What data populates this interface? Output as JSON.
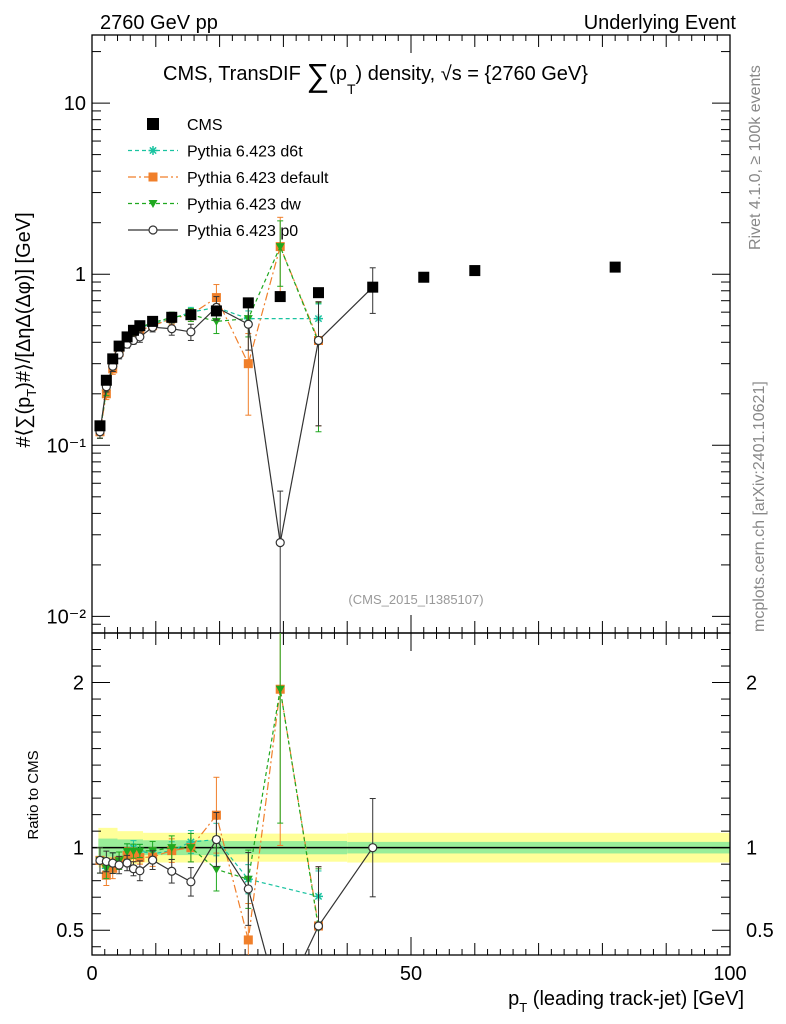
{
  "header": {
    "left": "2760 GeV pp",
    "right": "Underlying Event",
    "title_prefix": "CMS, TransDIF ",
    "title_sym": "∑",
    "title_p": "(p",
    "title_sub": "T",
    "title_suffix": ") density, √s = {2760 GeV}"
  },
  "side": {
    "rivet": "Rivet 4.1.0, ≥ 100k events",
    "mcplots": "mcplots.cern.ch [arXiv:2401.10621]"
  },
  "watermark": "(CMS_2015_I1385107)",
  "legend": [
    {
      "name": "CMS",
      "color": "#000000",
      "marker": "square"
    },
    {
      "name": "Pythia 6.423 d6t",
      "color": "#19c3a0",
      "marker": "star"
    },
    {
      "name": "Pythia 6.423 default",
      "color": "#f07f2a",
      "marker": "square"
    },
    {
      "name": "Pythia 6.423 dw",
      "color": "#1fa81f",
      "marker": "tri"
    },
    {
      "name": "Pythia 6.423 p0",
      "color": "#333333",
      "marker": "circle"
    }
  ],
  "chart_data": {
    "type": "scatter",
    "title": "CMS, TransDIF ∑(pT) density, √s = {2760 GeV}",
    "xlabel_main": "p",
    "xlabel_sub": "T",
    "xlabel_rest": " (leading track-jet) [GeV]",
    "ylabel": "#⟨∑(pT)#⟩/[ΔηΔ(Δφ)] [GeV]",
    "ratio_ylabel": "Ratio to CMS",
    "xlim": [
      0,
      100
    ],
    "ylim": [
      0.008,
      25
    ],
    "ratio_ylim": [
      0.35,
      2.3
    ],
    "x_ticks": [
      0,
      50,
      100
    ],
    "x_tick_labels": [
      "0",
      "50",
      "100"
    ],
    "y_ticks": [
      0.01,
      0.1,
      1,
      10
    ],
    "y_tick_labels": [
      "10⁻²",
      "10⁻¹",
      "1",
      "10"
    ],
    "ratio_ticks": [
      0.5,
      1,
      2
    ],
    "ratio_tick_labels": [
      "0.5",
      "1",
      "2"
    ],
    "cms": {
      "x": [
        1.25,
        2.25,
        3.25,
        4.25,
        5.5,
        6.5,
        7.5,
        9.5,
        12.5,
        15.5,
        19.5,
        24.5,
        29.5,
        35.5,
        44,
        52,
        60,
        82
      ],
      "y": [
        0.13,
        0.24,
        0.32,
        0.38,
        0.43,
        0.47,
        0.5,
        0.53,
        0.56,
        0.58,
        0.61,
        0.68,
        0.74,
        0.78,
        0.84,
        0.96,
        1.05,
        1.1
      ],
      "band_x": [
        1,
        4,
        8,
        20,
        40,
        101
      ],
      "band_inner": [
        0.055,
        0.05,
        0.045,
        0.04,
        0.035
      ],
      "band_outer": [
        0.12,
        0.1,
        0.09,
        0.085,
        0.09
      ]
    },
    "series": [
      {
        "name": "Pythia 6.423 d6t",
        "color": "#19c3a0",
        "marker": "star",
        "dash": "4,3",
        "x": [
          1.25,
          2.25,
          3.25,
          4.25,
          5.5,
          6.5,
          7.5,
          9.5,
          12.5,
          15.5,
          19.5,
          24.5,
          35.5
        ],
        "y": [
          0.12,
          0.21,
          0.29,
          0.35,
          0.42,
          0.47,
          0.49,
          0.51,
          0.55,
          0.6,
          0.64,
          0.55,
          0.55
        ],
        "err": [
          0.01,
          0.015,
          0.02,
          0.02,
          0.02,
          0.02,
          0.02,
          0.02,
          0.03,
          0.04,
          0.06,
          0.06,
          0.12
        ]
      },
      {
        "name": "Pythia 6.423 default",
        "color": "#f07f2a",
        "marker": "square",
        "dash": "8,3,2,3",
        "x": [
          1.25,
          2.25,
          3.25,
          4.25,
          5.5,
          6.5,
          7.5,
          9.5,
          12.5,
          15.5,
          19.5,
          24.5,
          29.5,
          35.5
        ],
        "y": [
          0.12,
          0.2,
          0.28,
          0.35,
          0.41,
          0.45,
          0.47,
          0.5,
          0.55,
          0.58,
          0.73,
          0.3,
          1.45,
          0.41
        ],
        "err": [
          0.01,
          0.015,
          0.02,
          0.02,
          0.02,
          0.02,
          0.02,
          0.03,
          0.04,
          0.05,
          0.14,
          0.15,
          0.7,
          0.28
        ]
      },
      {
        "name": "Pythia 6.423 dw",
        "color": "#1fa81f",
        "marker": "tri",
        "dash": "4,3",
        "x": [
          1.25,
          2.25,
          3.25,
          4.25,
          5.5,
          6.5,
          7.5,
          9.5,
          12.5,
          15.5,
          19.5,
          24.5,
          29.5,
          35.5
        ],
        "y": [
          0.12,
          0.21,
          0.29,
          0.35,
          0.42,
          0.46,
          0.49,
          0.52,
          0.56,
          0.58,
          0.53,
          0.55,
          1.45,
          0.4
        ],
        "err": [
          0.01,
          0.015,
          0.02,
          0.02,
          0.02,
          0.02,
          0.02,
          0.03,
          0.04,
          0.05,
          0.08,
          0.12,
          0.6,
          0.28
        ]
      },
      {
        "name": "Pythia 6.423 p0",
        "color": "#333333",
        "marker": "circle",
        "dash": "",
        "x": [
          1.25,
          2.25,
          3.25,
          4.25,
          5.5,
          6.5,
          7.5,
          9.5,
          12.5,
          15.5,
          19.5,
          24.5,
          29.5,
          35.5,
          44
        ],
        "y": [
          0.12,
          0.22,
          0.29,
          0.34,
          0.39,
          0.41,
          0.43,
          0.49,
          0.48,
          0.46,
          0.64,
          0.51,
          0.027,
          0.41,
          0.84
        ],
        "err": [
          0.01,
          0.015,
          0.02,
          0.02,
          0.02,
          0.02,
          0.03,
          0.03,
          0.04,
          0.05,
          0.1,
          0.15,
          0.027,
          0.28,
          0.25
        ]
      }
    ]
  }
}
